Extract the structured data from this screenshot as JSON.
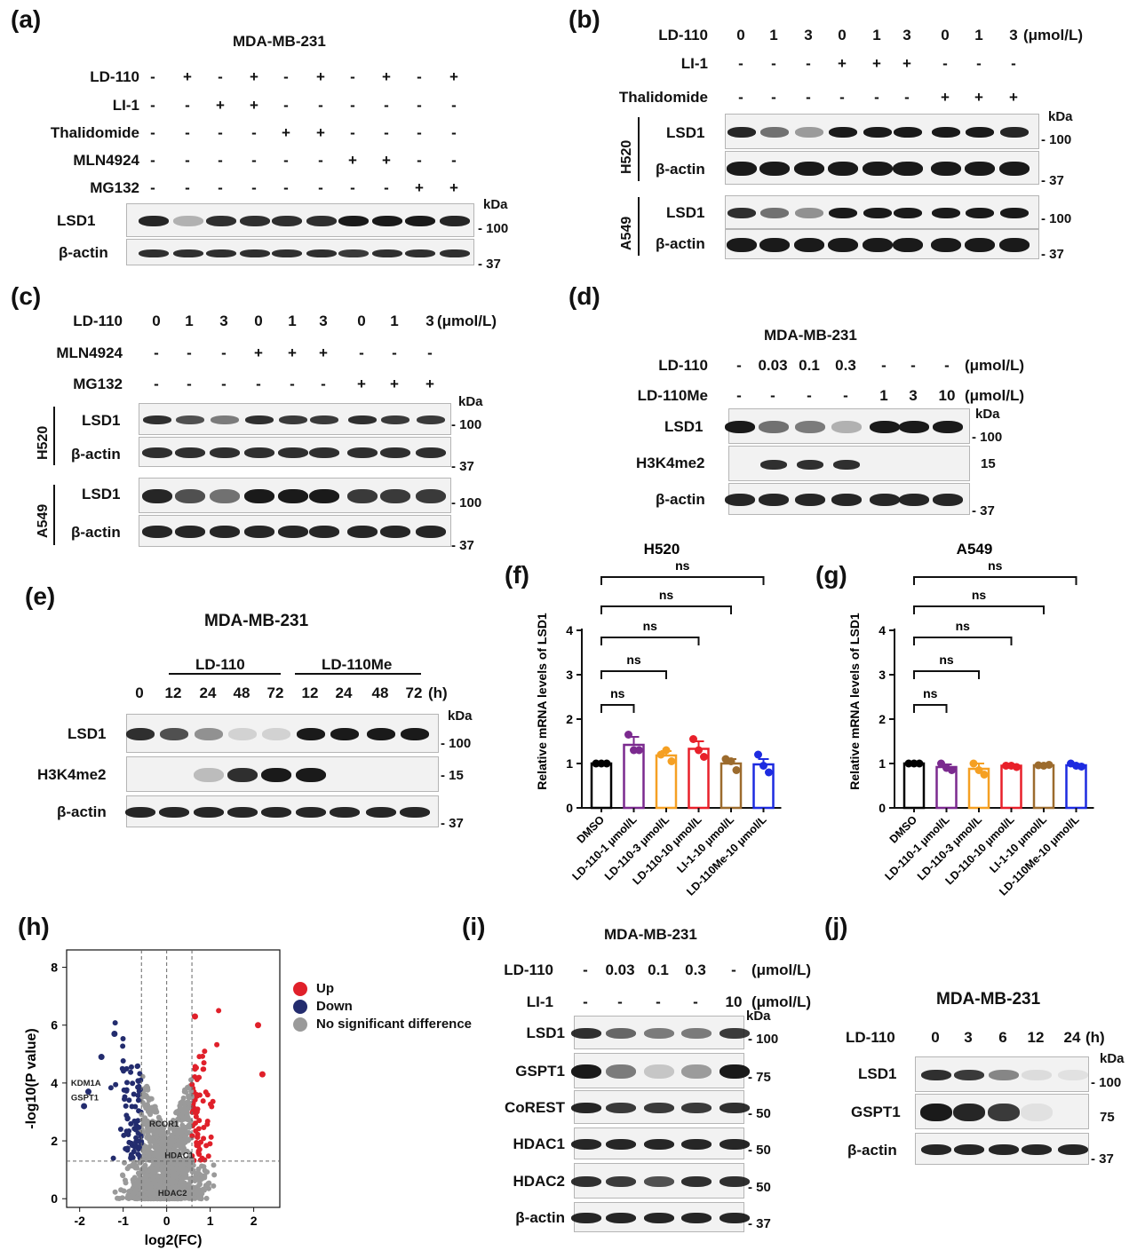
{
  "panel_a": {
    "label": "(a)",
    "title": "MDA-MB-231",
    "rows": [
      {
        "name": "LD-110",
        "values": [
          "-",
          "+",
          "-",
          "+",
          "-",
          "+",
          "-",
          "+",
          "-",
          "+"
        ]
      },
      {
        "name": "LI-1",
        "values": [
          "-",
          "-",
          "+",
          "+",
          "-",
          "-",
          "-",
          "-",
          "-",
          "-"
        ]
      },
      {
        "name": "Thalidomide",
        "values": [
          "-",
          "-",
          "-",
          "-",
          "+",
          "+",
          "-",
          "-",
          "-",
          "-"
        ]
      },
      {
        "name": "MLN4924",
        "values": [
          "-",
          "-",
          "-",
          "-",
          "-",
          "-",
          "+",
          "+",
          "-",
          "-"
        ]
      },
      {
        "name": "MG132",
        "values": [
          "-",
          "-",
          "-",
          "-",
          "-",
          "-",
          "-",
          "-",
          "+",
          "+"
        ]
      }
    ],
    "blots": [
      {
        "name": "LSD1",
        "marker": "100"
      },
      {
        "name": "β-actin",
        "marker": "37"
      }
    ],
    "kda": "kDa"
  },
  "panel_b": {
    "label": "(b)",
    "rows": [
      {
        "name": "LD-110",
        "values": [
          "0",
          "1",
          "3",
          "0",
          "1",
          "3",
          "0",
          "1",
          "3"
        ],
        "unit": "(μmol/L)"
      },
      {
        "name": "LI-1",
        "values": [
          "-",
          "-",
          "-",
          "+",
          "+",
          "+",
          "-",
          "-",
          "-"
        ]
      },
      {
        "name": "Thalidomide",
        "values": [
          "-",
          "-",
          "-",
          "-",
          "-",
          "-",
          "+",
          "+",
          "+"
        ]
      }
    ],
    "groups": [
      {
        "cell": "H520",
        "blots": [
          {
            "name": "LSD1",
            "marker": "100"
          },
          {
            "name": "β-actin",
            "marker": "37"
          }
        ]
      },
      {
        "cell": "A549",
        "blots": [
          {
            "name": "LSD1",
            "marker": "100"
          },
          {
            "name": "β-actin",
            "marker": "37"
          }
        ]
      }
    ],
    "kda": "kDa"
  },
  "panel_c": {
    "label": "(c)",
    "rows": [
      {
        "name": "LD-110",
        "values": [
          "0",
          "1",
          "3",
          "0",
          "1",
          "3",
          "0",
          "1",
          "3"
        ],
        "unit": "(μmol/L)"
      },
      {
        "name": "MLN4924",
        "values": [
          "-",
          "-",
          "-",
          "+",
          "+",
          "+",
          "-",
          "-",
          "-"
        ]
      },
      {
        "name": "MG132",
        "values": [
          "-",
          "-",
          "-",
          "-",
          "-",
          "-",
          "+",
          "+",
          "+"
        ]
      }
    ],
    "groups": [
      {
        "cell": "H520",
        "blots": [
          {
            "name": "LSD1",
            "marker": "100"
          },
          {
            "name": "β-actin",
            "marker": "37"
          }
        ]
      },
      {
        "cell": "A549",
        "blots": [
          {
            "name": "LSD1",
            "marker": "100"
          },
          {
            "name": "β-actin",
            "marker": "37"
          }
        ]
      }
    ],
    "kda": "kDa"
  },
  "panel_d": {
    "label": "(d)",
    "title": "MDA-MB-231",
    "rows": [
      {
        "name": "LD-110",
        "values": [
          "-",
          "0.03",
          "0.1",
          "0.3",
          "-",
          "-",
          "-"
        ],
        "unit": "(μmol/L)"
      },
      {
        "name": "LD-110Me",
        "values": [
          "-",
          "-",
          "-",
          "-",
          "1",
          "3",
          "10"
        ],
        "unit": "(μmol/L)"
      }
    ],
    "blots": [
      {
        "name": "LSD1",
        "marker": "100"
      },
      {
        "name": "H3K4me2",
        "marker": "15"
      },
      {
        "name": "β-actin",
        "marker": "37"
      }
    ],
    "kda": "kDa"
  },
  "panel_e": {
    "label": "(e)",
    "title": "MDA-MB-231",
    "group1": "LD-110",
    "group2": "LD-110Me",
    "times": [
      "0",
      "12",
      "24",
      "48",
      "72",
      "12",
      "24",
      "48",
      "72"
    ],
    "time_unit": "(h)",
    "blots": [
      {
        "name": "LSD1",
        "marker": "100"
      },
      {
        "name": "H3K4me2",
        "marker": "15"
      },
      {
        "name": "β-actin",
        "marker": "37"
      }
    ],
    "kda": "kDa"
  },
  "panel_h": {
    "label": "(h)",
    "legend": [
      "Up",
      "Down",
      "No significant difference"
    ],
    "annotations": [
      "KDM1A",
      "GSPT1",
      "RCOR1",
      "HDAC1",
      "HDAC2"
    ]
  },
  "panel_i": {
    "label": "(i)",
    "title": "MDA-MB-231",
    "rows": [
      {
        "name": "LD-110",
        "values": [
          "-",
          "0.03",
          "0.1",
          "0.3",
          "-"
        ],
        "unit": "(μmol/L)"
      },
      {
        "name": "LI-1",
        "values": [
          "-",
          "-",
          "-",
          "-",
          "10"
        ],
        "unit": "(μmol/L)"
      }
    ],
    "blots": [
      {
        "name": "LSD1",
        "marker": "100"
      },
      {
        "name": "GSPT1",
        "marker": "75"
      },
      {
        "name": "CoREST",
        "marker": "50"
      },
      {
        "name": "HDAC1",
        "marker": "50"
      },
      {
        "name": "HDAC2",
        "marker": "50"
      },
      {
        "name": "β-actin",
        "marker": "37"
      }
    ],
    "kda": "kDa"
  },
  "panel_j": {
    "label": "(j)",
    "title": "MDA-MB-231",
    "row": {
      "name": "LD-110",
      "values": [
        "0",
        "3",
        "6",
        "12",
        "24"
      ],
      "unit": "(h)"
    },
    "blots": [
      {
        "name": "LSD1",
        "marker": "100"
      },
      {
        "name": "GSPT1",
        "marker": "75"
      },
      {
        "name": "β-actin",
        "marker": "37"
      }
    ],
    "kda": "kDa"
  },
  "chart_data": [
    {
      "type": "bar",
      "panel": "(f)",
      "title": "H520",
      "ylabel": "Relative mRNA levels of LSD1",
      "ylim": [
        0,
        4
      ],
      "yticks": [
        "0",
        "1",
        "2",
        "3",
        "4"
      ],
      "categories": [
        "DMSO",
        "LD-110-1 μmol/L",
        "LD-110-3 μmol/L",
        "LD-110-10 μmol/L",
        "LI-1-10 μmol/L",
        "LD-110Me-10 μmol/L"
      ],
      "values": [
        1.0,
        1.42,
        1.18,
        1.33,
        1.0,
        0.98
      ],
      "errors": [
        0.0,
        0.18,
        0.1,
        0.17,
        0.1,
        0.12
      ],
      "colors": [
        "#000000",
        "#7b2a8f",
        "#f5a023",
        "#e8202a",
        "#9c6b2d",
        "#1d2be0"
      ],
      "points": [
        [
          1.0,
          1.0,
          1.0
        ],
        [
          1.65,
          1.3,
          1.3
        ],
        [
          1.2,
          1.3,
          1.05
        ],
        [
          1.55,
          1.3,
          1.15
        ],
        [
          1.1,
          1.05,
          0.85
        ],
        [
          1.2,
          0.95,
          0.8
        ]
      ],
      "significance": [
        "ns",
        "ns",
        "ns",
        "ns",
        "ns"
      ]
    },
    {
      "type": "bar",
      "panel": "(g)",
      "title": "A549",
      "ylabel": "Relative mRNA levels of LSD1",
      "ylim": [
        0,
        4
      ],
      "yticks": [
        "0",
        "1",
        "2",
        "3",
        "4"
      ],
      "categories": [
        "DMSO",
        "LD-110-1 μmol/L",
        "LD-110-3 μmol/L",
        "LD-110-10 μmol/L",
        "LI-1-10 μmol/L",
        "LD-110Me-10 μmol/L"
      ],
      "values": [
        1.0,
        0.92,
        0.88,
        0.95,
        0.96,
        0.96
      ],
      "errors": [
        0.0,
        0.06,
        0.12,
        0.03,
        0.02,
        0.03
      ],
      "colors": [
        "#000000",
        "#7b2a8f",
        "#f5a023",
        "#e8202a",
        "#9c6b2d",
        "#1d2be0"
      ],
      "points": [
        [
          1.0,
          1.0,
          1.0
        ],
        [
          1.0,
          0.9,
          0.85
        ],
        [
          1.0,
          0.85,
          0.75
        ],
        [
          0.95,
          0.95,
          0.92
        ],
        [
          0.96,
          0.95,
          0.97
        ],
        [
          1.0,
          0.95,
          0.93
        ]
      ],
      "significance": [
        "ns",
        "ns",
        "ns",
        "ns",
        "ns"
      ]
    },
    {
      "type": "scatter",
      "panel": "(h)",
      "xlabel": "log2(FC)",
      "ylabel": "-log10(P value)",
      "xlim": [
        -2.3,
        2.6
      ],
      "ylim": [
        -0.3,
        8.6
      ],
      "xticks": [
        "-2",
        "-1",
        "0",
        "1",
        "2"
      ],
      "yticks": [
        "0",
        "2",
        "4",
        "6",
        "8"
      ],
      "thresholds": {
        "fc": [
          -0.58,
          0.58
        ],
        "p": 1.3
      },
      "series": [
        {
          "name": "Up",
          "color": "#e0202a"
        },
        {
          "name": "Down",
          "color": "#232c6e"
        },
        {
          "name": "No significant difference",
          "color": "#9a9a9a"
        }
      ]
    }
  ]
}
